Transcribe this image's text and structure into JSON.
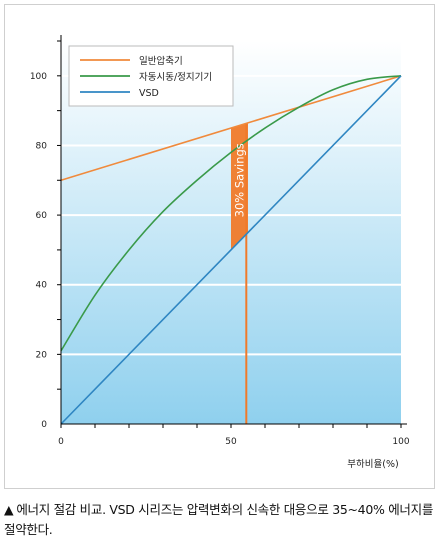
{
  "chart_data": {
    "type": "line",
    "xlabel": "부하비율(%)",
    "ylabel": "",
    "xlim": [
      0,
      100
    ],
    "ylim": [
      0,
      110
    ],
    "x_ticks": [
      0,
      50,
      100
    ],
    "y_ticks": [
      0,
      20,
      40,
      60,
      80,
      100
    ],
    "legend_position": "top-left",
    "grid": true,
    "series": [
      {
        "name": "일반압축기",
        "color": "#f08a3c",
        "x": [
          0,
          100
        ],
        "values": [
          70,
          100
        ]
      },
      {
        "name": "자동시동/정지기기",
        "color": "#3a9a4a",
        "x": [
          0,
          10,
          20,
          30,
          40,
          50,
          60,
          70,
          80,
          90,
          100
        ],
        "values": [
          21,
          37,
          50,
          61,
          70,
          78,
          85,
          91,
          96,
          99,
          100
        ]
      },
      {
        "name": "VSD",
        "color": "#2f86c2",
        "x": [
          0,
          100
        ],
        "values": [
          0,
          100
        ]
      }
    ],
    "annotation": {
      "text": "30% Savings",
      "x_range": [
        50,
        55
      ],
      "color": "#f07a2a"
    },
    "marker_line_x": 54.5
  },
  "caption": {
    "marker": "▲",
    "text": "에너지 절감 비교. VSD 시리즈는 압력변화의 신속한 대응으로 35~40% 에너지를 절약한다."
  }
}
